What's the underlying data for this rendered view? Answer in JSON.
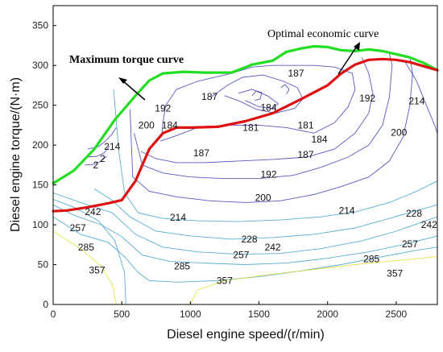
{
  "chart_data": {
    "type": "contour",
    "xlabel": "Diesel engine speed/(r/min)",
    "ylabel": "Diesel engine torque/(N·m)",
    "xlim": [
      0,
      2800
    ],
    "ylim": [
      0,
      375
    ],
    "x_ticks": [
      0,
      500,
      1000,
      1500,
      2000,
      2500
    ],
    "y_ticks": [
      0,
      50,
      100,
      150,
      200,
      250,
      300,
      350
    ],
    "grid": false,
    "colors": {
      "max_torque": "#22dd22",
      "optimal": "#dd1111",
      "contour_low": "#3b3bb8",
      "contour_mid": "#3aa0c8",
      "contour_high": "#dede30"
    },
    "series": [
      {
        "name": "Maximum torque curve",
        "style": "green-thick",
        "x": [
          0,
          150,
          300,
          450,
          600,
          700,
          800,
          950,
          1100,
          1300,
          1450,
          1600,
          1700,
          1800,
          1900,
          2000,
          2100,
          2200,
          2300,
          2400,
          2500,
          2600,
          2700,
          2800
        ],
        "y": [
          152,
          168,
          195,
          232,
          262,
          281,
          290,
          292,
          291,
          291,
          301,
          306,
          317,
          321,
          324,
          323,
          319,
          318,
          320,
          318,
          314,
          310,
          303,
          294
        ]
      },
      {
        "name": "Optimal economic curve",
        "style": "red-thick",
        "x": [
          0,
          100,
          250,
          400,
          500,
          600,
          650,
          700,
          800,
          900,
          1000,
          1200,
          1400,
          1600,
          1800,
          2000,
          2100,
          2200,
          2300,
          2400,
          2500,
          2600,
          2700,
          2800
        ],
        "y": [
          117,
          118,
          122,
          127,
          131,
          155,
          175,
          195,
          215,
          222,
          222,
          223,
          230,
          240,
          257,
          275,
          290,
          301,
          307,
          308,
          307,
          304,
          299,
          294
        ]
      }
    ],
    "contour_labels": [
      {
        "value": "187",
        "x": 1140,
        "y": 261
      },
      {
        "value": "184",
        "x": 1570,
        "y": 247
      },
      {
        "value": "187",
        "x": 1770,
        "y": 290
      },
      {
        "value": "192",
        "x": 800,
        "y": 246
      },
      {
        "value": "184",
        "x": 850,
        "y": 225
      },
      {
        "value": "200",
        "x": 680,
        "y": 225
      },
      {
        "value": "181",
        "x": 1440,
        "y": 222
      },
      {
        "value": "181",
        "x": 1840,
        "y": 225
      },
      {
        "value": "184",
        "x": 1940,
        "y": 207
      },
      {
        "value": "192",
        "x": 2290,
        "y": 259
      },
      {
        "value": "214",
        "x": 2650,
        "y": 255
      },
      {
        "value": "200",
        "x": 2520,
        "y": 216
      },
      {
        "value": "187",
        "x": 1080,
        "y": 190
      },
      {
        "value": "187",
        "x": 1840,
        "y": 188
      },
      {
        "value": "192",
        "x": 1570,
        "y": 163
      },
      {
        "value": "200",
        "x": 1530,
        "y": 134
      },
      {
        "value": "214",
        "x": 910,
        "y": 109
      },
      {
        "value": "214",
        "x": 2140,
        "y": 118
      },
      {
        "value": "228",
        "x": 2630,
        "y": 114
      },
      {
        "value": "242",
        "x": 2740,
        "y": 100
      },
      {
        "value": "228",
        "x": 1430,
        "y": 82
      },
      {
        "value": "242",
        "x": 1600,
        "y": 72
      },
      {
        "value": "257",
        "x": 1370,
        "y": 62
      },
      {
        "value": "257",
        "x": 2600,
        "y": 76
      },
      {
        "value": "285",
        "x": 2320,
        "y": 57
      },
      {
        "value": "285",
        "x": 940,
        "y": 48
      },
      {
        "value": "357",
        "x": 1250,
        "y": 30
      },
      {
        "value": "357",
        "x": 2490,
        "y": 39
      },
      {
        "value": "242",
        "x": 290,
        "y": 116
      },
      {
        "value": "257",
        "x": 180,
        "y": 96
      },
      {
        "value": "285",
        "x": 240,
        "y": 72
      },
      {
        "value": "357",
        "x": 320,
        "y": 43
      },
      {
        "value": "214",
        "x": 430,
        "y": 198
      },
      {
        "value": "2",
        "x": 360,
        "y": 183
      },
      {
        "value": "2",
        "x": 310,
        "y": 175
      }
    ],
    "annotations": [
      {
        "text": "Maximum torque curve",
        "bold": true
      },
      {
        "text": "Optimal economic curve",
        "bold": false
      }
    ]
  }
}
